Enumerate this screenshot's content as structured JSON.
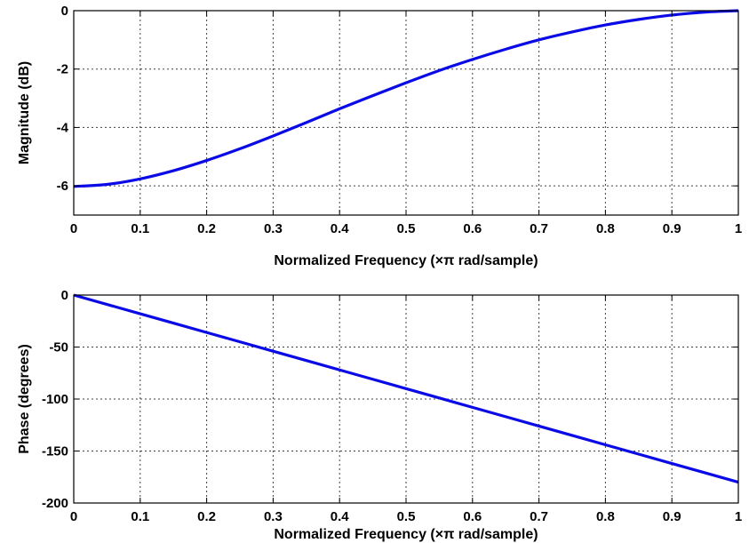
{
  "chart_data": [
    {
      "type": "line",
      "xlabel": "Normalized Frequency  (×π rad/sample)",
      "ylabel": "Magnitude (dB)",
      "xlim": [
        0,
        1
      ],
      "ylim": [
        -7,
        0
      ],
      "xticks": [
        0,
        0.1,
        0.2,
        0.3,
        0.4,
        0.5,
        0.6,
        0.7,
        0.8,
        0.9,
        1
      ],
      "xtick_labels": [
        "0",
        "0.1",
        "0.2",
        "0.3",
        "0.4",
        "0.5",
        "0.6",
        "0.7",
        "0.8",
        "0.9",
        "1"
      ],
      "yticks": [
        -6,
        -4,
        -2,
        0
      ],
      "ytick_labels": [
        "-6",
        "-4",
        "-2",
        "0"
      ],
      "grid": true,
      "series": [
        {
          "color": "#0a0ae6",
          "x": [
            0,
            0.05,
            0.1,
            0.15,
            0.2,
            0.25,
            0.3,
            0.35,
            0.4,
            0.45,
            0.5,
            0.55,
            0.6,
            0.65,
            0.7,
            0.75,
            0.8,
            0.85,
            0.9,
            0.95,
            1
          ],
          "y": [
            -6.02,
            -5.95,
            -5.76,
            -5.48,
            -5.13,
            -4.73,
            -4.29,
            -3.83,
            -3.36,
            -2.91,
            -2.47,
            -2.05,
            -1.67,
            -1.32,
            -1.0,
            -0.73,
            -0.49,
            -0.3,
            -0.15,
            -0.05,
            0
          ]
        }
      ]
    },
    {
      "type": "line",
      "xlabel": "Normalized Frequency  (×π rad/sample)",
      "ylabel": "Phase (degrees)",
      "xlim": [
        0,
        1
      ],
      "ylim": [
        -200,
        0
      ],
      "xticks": [
        0,
        0.1,
        0.2,
        0.3,
        0.4,
        0.5,
        0.6,
        0.7,
        0.8,
        0.9,
        1
      ],
      "xtick_labels": [
        "0",
        "0.1",
        "0.2",
        "0.3",
        "0.4",
        "0.5",
        "0.6",
        "0.7",
        "0.8",
        "0.9",
        "1"
      ],
      "yticks": [
        -200,
        -150,
        -100,
        -50,
        0
      ],
      "ytick_labels": [
        "-200",
        "-150",
        "-100",
        "-50",
        "0"
      ],
      "grid": true,
      "series": [
        {
          "color": "#0a0ae6",
          "x": [
            0,
            0.1,
            0.2,
            0.3,
            0.4,
            0.5,
            0.6,
            0.7,
            0.8,
            0.9,
            1
          ],
          "y": [
            0,
            -18,
            -36,
            -54,
            -72,
            -90,
            -108,
            -126,
            -144,
            -162,
            -180
          ]
        }
      ]
    }
  ]
}
